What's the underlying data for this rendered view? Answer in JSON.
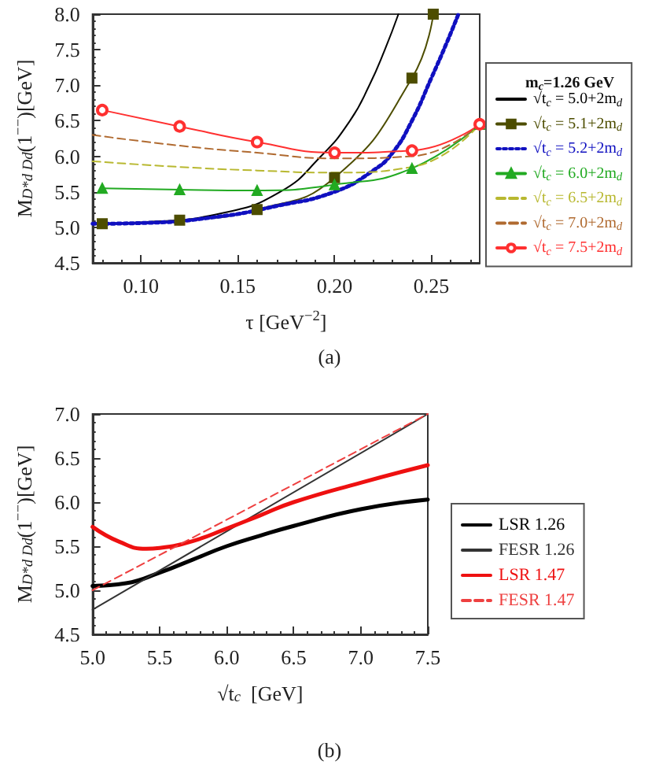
{
  "chart_data": [
    {
      "type": "line",
      "xlabel": "τ [GeV$^{−2}$]",
      "ylabel": "M$_{D*d Dd}$(1$^{−−}$)[GeV]",
      "legend_title": "m$_{c}$=1.26 GeV",
      "annotations": [
        "(a)"
      ],
      "xlim": [
        0.075,
        0.275
      ],
      "xticks": [
        {
          "value": 0.1,
          "label": "0.10"
        },
        {
          "value": 0.15,
          "label": "0.15"
        },
        {
          "value": 0.2,
          "label": "0.20"
        },
        {
          "value": 0.25,
          "label": "0.25"
        }
      ],
      "ylim": [
        4.5,
        8.0
      ],
      "yticks": [
        4.5,
        {
          "value": 5,
          "label": "5.0"
        },
        5.5,
        {
          "value": 6,
          "label": "6.0"
        },
        6.5,
        {
          "value": 7,
          "label": "7.0"
        },
        7.5,
        {
          "value": 8,
          "label": "8.0"
        }
      ],
      "grid": false,
      "legend": "right",
      "series": [
        {
          "name": "√t$_{c}$ = 5.0+2m$_{d}$",
          "color": "#000000",
          "line_style": "solid",
          "marker": "none",
          "x": [
            0.075,
            0.1,
            0.142,
            0.172,
            0.193,
            0.208,
            0.218,
            0.226,
            0.233
          ],
          "values": [
            5.05,
            5.07,
            5.2,
            5.5,
            6.0,
            6.5,
            7.0,
            7.5,
            8.0
          ]
        },
        {
          "name": "√t$_{c}$ = 5.1+2m$_{d}$",
          "color": "#4d4d00",
          "line_style": "solid",
          "marker": "square",
          "x": [
            0.08,
            0.12,
            0.16,
            0.2,
            0.24,
            0.251
          ],
          "values": [
            5.05,
            5.1,
            5.25,
            5.7,
            7.1,
            8.0
          ]
        },
        {
          "name": "√t$_{c}$ = 5.2+2m$_{d}$",
          "color": "#1010c0",
          "line_style": "dotted",
          "marker": "none",
          "x": [
            0.075,
            0.1,
            0.14,
            0.17,
            0.2,
            0.22,
            0.23,
            0.24,
            0.25,
            0.258,
            0.264
          ],
          "values": [
            5.05,
            5.06,
            5.15,
            5.3,
            5.5,
            5.8,
            6.05,
            6.5,
            7.1,
            7.6,
            8.0
          ]
        },
        {
          "name": "√t$_{c}$ = 6.0+2m$_{d}$",
          "color": "#22aa22",
          "line_style": "solid",
          "marker": "triangle",
          "x": [
            0.08,
            0.12,
            0.16,
            0.2,
            0.24,
            0.275
          ],
          "values": [
            5.55,
            5.53,
            5.52,
            5.6,
            5.83,
            6.45
          ]
        },
        {
          "name": "√t$_{c}$ = 6.5+2m$_{d}$",
          "color": "#b8b830",
          "line_style": "dashed",
          "marker": "none",
          "x": [
            0.075,
            0.12,
            0.16,
            0.2,
            0.24,
            0.275
          ],
          "values": [
            5.93,
            5.85,
            5.8,
            5.77,
            5.85,
            6.45
          ]
        },
        {
          "name": "√t$_{c}$ = 7.0+2m$_{d}$",
          "color": "#b06a30",
          "line_style": "dashed",
          "marker": "none",
          "x": [
            0.075,
            0.12,
            0.16,
            0.2,
            0.24,
            0.275
          ],
          "values": [
            6.3,
            6.15,
            6.05,
            5.97,
            6.0,
            6.45
          ]
        },
        {
          "name": "√t$_{c}$ = 7.5+2m$_{d}$",
          "color": "#ff3030",
          "line_style": "solid",
          "marker": "circle",
          "x": [
            0.08,
            0.12,
            0.16,
            0.2,
            0.24,
            0.275
          ],
          "values": [
            6.65,
            6.42,
            6.2,
            6.05,
            6.08,
            6.45
          ]
        }
      ]
    },
    {
      "type": "line",
      "xlabel": "√t$_{c}$  [GeV]",
      "ylabel": "M$_{D*d Dd}$(1$^{−−}$)[GeV]",
      "annotations": [
        "(b)"
      ],
      "xlim": [
        5.0,
        7.5
      ],
      "xticks": [
        {
          "value": 5,
          "label": "5.0"
        },
        5.5,
        {
          "value": 6,
          "label": "6.0"
        },
        6.5,
        {
          "value": 7,
          "label": "7.0"
        },
        7.5
      ],
      "ylim": [
        4.5,
        7.0
      ],
      "yticks": [
        4.5,
        {
          "value": 5,
          "label": "5.0"
        },
        5.5,
        {
          "value": 6,
          "label": "6.0"
        },
        6.5,
        {
          "value": 7,
          "label": "7.0"
        }
      ],
      "grid": false,
      "legend": "right",
      "series": [
        {
          "name": "LSR 1.26",
          "color": "#000000",
          "line_style": "solid",
          "x": [
            5.0,
            5.25,
            5.5,
            5.75,
            6.0,
            6.25,
            6.5,
            7.0,
            7.5
          ],
          "values": [
            5.05,
            5.08,
            5.2,
            5.35,
            5.5,
            5.62,
            5.73,
            5.92,
            6.03
          ]
        },
        {
          "name": "FESR 1.26",
          "color": "#333333",
          "line_style": "solid",
          "x": [
            5.0,
            7.5
          ],
          "values": [
            4.78,
            7.0
          ]
        },
        {
          "name": "LSR 1.47",
          "color": "#ee1010",
          "line_style": "solid",
          "x": [
            5.0,
            5.2,
            5.4,
            5.5,
            5.75,
            6.0,
            6.25,
            6.5,
            7.0,
            7.5
          ],
          "values": [
            5.72,
            5.55,
            5.47,
            5.48,
            5.56,
            5.7,
            5.85,
            6.0,
            6.22,
            6.42
          ]
        },
        {
          "name": "FESR 1.47",
          "color": "#ee4040",
          "line_style": "dashed",
          "x": [
            5.0,
            7.5
          ],
          "values": [
            5.0,
            7.0
          ]
        }
      ]
    }
  ]
}
